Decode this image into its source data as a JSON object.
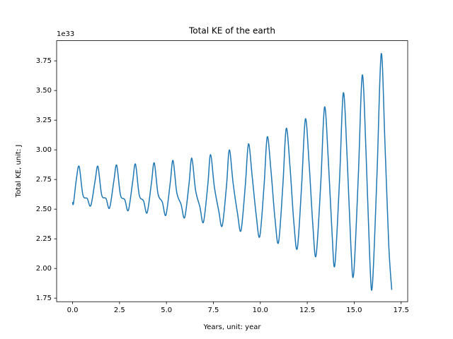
{
  "chart_data": {
    "type": "line",
    "title": "Total KE of the earth",
    "xlabel": "Years, unit: year",
    "ylabel": "Total KE, unit: J",
    "y_offset_label": "1e33",
    "x": [
      0,
      0.05,
      0.2,
      0.35,
      0.55,
      0.78,
      0.97,
      1.2,
      1.35,
      1.55,
      1.78,
      1.97,
      2.2,
      2.35,
      2.55,
      2.78,
      2.97,
      3.2,
      3.35,
      3.55,
      3.78,
      3.97,
      4.2,
      4.35,
      4.55,
      4.78,
      4.97,
      5.2,
      5.35,
      5.55,
      5.78,
      5.97,
      6.2,
      6.35,
      6.55,
      6.78,
      6.97,
      7.2,
      7.35,
      7.55,
      7.78,
      7.97,
      8.2,
      8.35,
      8.55,
      8.78,
      8.97,
      9.2,
      9.37,
      9.57,
      9.78,
      9.97,
      10.2,
      10.37,
      10.57,
      10.78,
      10.97,
      11.2,
      11.38,
      11.58,
      11.78,
      11.97,
      12.2,
      12.4,
      12.6,
      12.8,
      12.97,
      13.22,
      13.42,
      13.62,
      13.82,
      13.97,
      14.22,
      14.42,
      14.62,
      14.82,
      14.97,
      15.22,
      15.43,
      15.63,
      15.83,
      15.97,
      16.22,
      16.44,
      16.64,
      16.84,
      17.0
    ],
    "series": [
      {
        "name": "Total KE",
        "color": "#1f77b4",
        "values": [
          2.56,
          2.55,
          2.75,
          2.86,
          2.62,
          2.59,
          2.53,
          2.74,
          2.86,
          2.62,
          2.59,
          2.51,
          2.74,
          2.87,
          2.62,
          2.58,
          2.49,
          2.73,
          2.88,
          2.62,
          2.57,
          2.47,
          2.72,
          2.89,
          2.63,
          2.56,
          2.45,
          2.72,
          2.91,
          2.64,
          2.54,
          2.43,
          2.71,
          2.93,
          2.66,
          2.52,
          2.39,
          2.7,
          2.96,
          2.69,
          2.49,
          2.36,
          2.7,
          3.0,
          2.72,
          2.47,
          2.32,
          2.7,
          3.05,
          2.77,
          2.45,
          2.27,
          2.7,
          3.11,
          2.82,
          2.42,
          2.22,
          2.7,
          3.18,
          2.86,
          2.4,
          2.17,
          2.7,
          3.26,
          2.88,
          2.36,
          2.11,
          2.72,
          3.36,
          2.92,
          2.3,
          2.03,
          2.75,
          3.48,
          2.95,
          2.2,
          1.95,
          2.78,
          3.63,
          2.98,
          2.08,
          1.86,
          2.82,
          3.81,
          3.05,
          2.2,
          1.82
        ]
      }
    ],
    "xlim": [
      -0.85,
      17.85
    ],
    "ylim": [
      1.72,
      3.92
    ],
    "xticks": [
      {
        "value": 0,
        "label": "0.0"
      },
      2.5,
      {
        "value": 5,
        "label": "5.0"
      },
      7.5,
      {
        "value": 10,
        "label": "10.0"
      },
      12.5,
      {
        "value": 15,
        "label": "15.0"
      },
      17.5
    ],
    "yticks": [
      1.75,
      {
        "value": 2,
        "label": "2.00"
      },
      2.25,
      {
        "value": 2.5,
        "label": "2.50"
      },
      2.75,
      {
        "value": 3,
        "label": "3.00"
      },
      3.25,
      {
        "value": 3.5,
        "label": "3.50"
      },
      3.75
    ],
    "grid": false
  }
}
